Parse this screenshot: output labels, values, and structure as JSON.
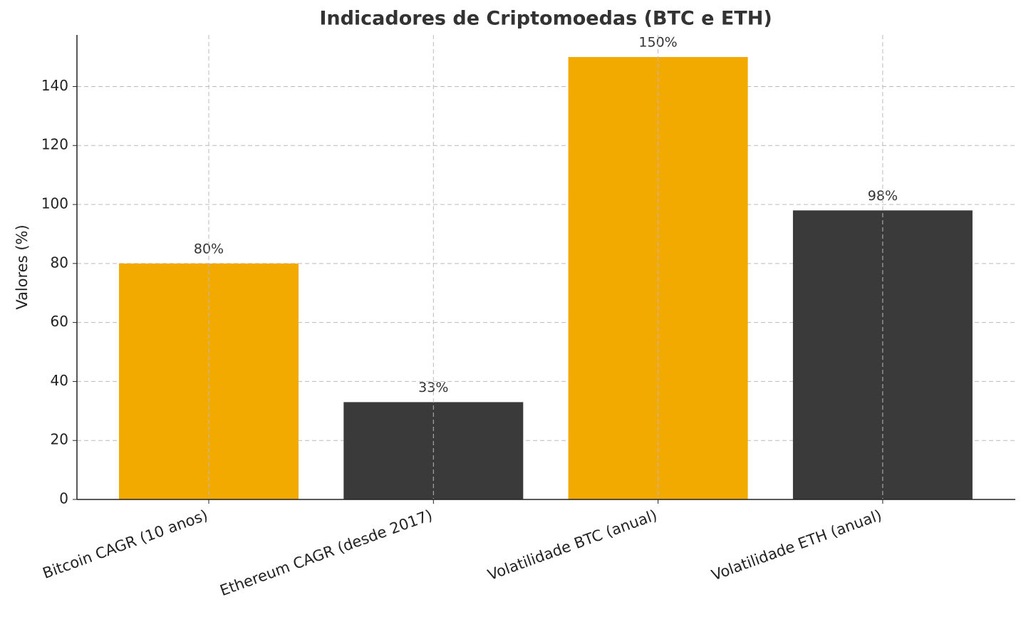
{
  "chart_data": {
    "type": "bar",
    "title": "Indicadores de Criptomoedas (BTC e ETH)",
    "ylabel": "Valores (%)",
    "categories": [
      "Bitcoin CAGR (10 anos)",
      "Ethereum CAGR (desde 2017)",
      "Volatilidade BTC (anual)",
      "Volatilidade ETH (anual)"
    ],
    "values": [
      80,
      33,
      150,
      98
    ],
    "value_labels": [
      "80%",
      "33%",
      "150%",
      "98%"
    ],
    "colors": [
      "#f2a900",
      "#3a3a3a",
      "#f2a900",
      "#3a3a3a"
    ],
    "ylim": [
      0,
      157.5
    ],
    "yticks": [
      0,
      20,
      40,
      60,
      80,
      100,
      120,
      140
    ],
    "grid": true
  }
}
